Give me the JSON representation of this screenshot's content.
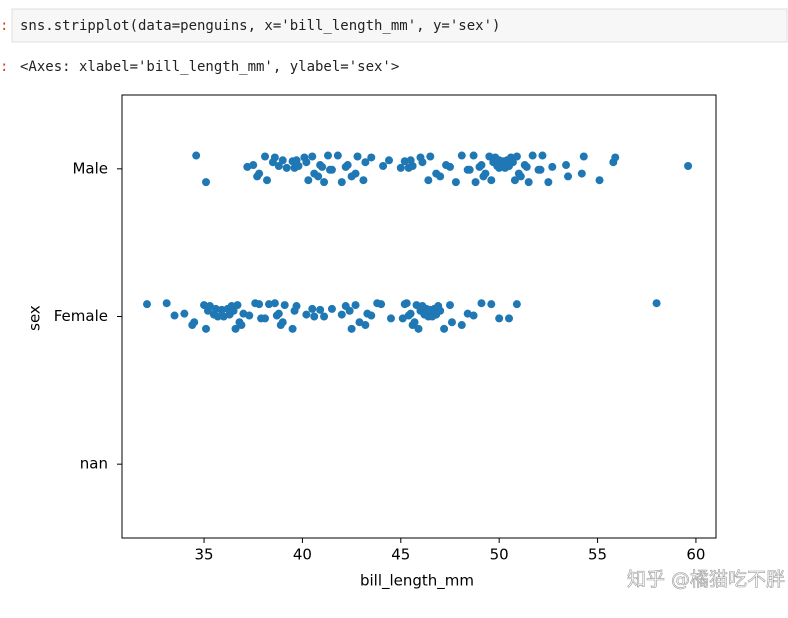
{
  "input_prompt": ":",
  "code": "sns.stripplot(data=penguins, x='bill_length_mm', y='sex')",
  "output_prompt": ":",
  "output": "<Axes: xlabel='bill_length_mm', ylabel='sex'>",
  "watermark": "知乎 @橘猫吃不胖",
  "chart_data": {
    "type": "strip",
    "xlabel": "bill_length_mm",
    "ylabel": "sex",
    "color": "#1f77b4",
    "categories": [
      "Male",
      "Female",
      "nan"
    ],
    "values": [
      [
        34.6,
        35.1,
        37.2,
        37.5,
        37.7,
        37.8,
        38.1,
        38.2,
        38.5,
        38.6,
        38.8,
        39.0,
        39.2,
        39.5,
        39.6,
        39.7,
        39.8,
        40.1,
        40.2,
        40.3,
        40.5,
        40.6,
        40.8,
        40.9,
        41.0,
        41.1,
        41.3,
        41.4,
        41.5,
        41.8,
        42.0,
        42.2,
        42.3,
        42.5,
        42.7,
        42.8,
        43.1,
        43.2,
        43.5,
        44.1,
        44.4,
        45.0,
        45.2,
        45.4,
        45.5,
        45.6,
        46.0,
        46.1,
        46.4,
        46.5,
        46.8,
        47.0,
        47.3,
        47.5,
        47.8,
        48.1,
        48.4,
        48.5,
        48.7,
        48.8,
        49.0,
        49.1,
        49.2,
        49.3,
        49.5,
        49.6,
        49.7,
        49.8,
        49.9,
        50.0,
        50.0,
        50.2,
        50.3,
        50.4,
        50.5,
        50.6,
        50.7,
        50.8,
        50.9,
        51.0,
        51.1,
        51.3,
        51.4,
        51.5,
        51.7,
        52.0,
        52.1,
        52.2,
        52.5,
        52.7,
        53.4,
        53.5,
        54.2,
        54.3,
        55.1,
        55.8,
        55.9,
        59.6
      ],
      [
        32.1,
        33.1,
        33.5,
        34.0,
        34.4,
        34.5,
        35.0,
        35.1,
        35.2,
        35.3,
        35.5,
        35.6,
        35.7,
        35.9,
        36.0,
        36.2,
        36.3,
        36.4,
        36.5,
        36.6,
        36.7,
        36.8,
        36.9,
        37.0,
        37.3,
        37.6,
        37.8,
        37.9,
        38.1,
        38.3,
        38.6,
        38.7,
        38.8,
        38.9,
        39.0,
        39.1,
        39.5,
        39.6,
        39.7,
        40.2,
        40.5,
        40.6,
        40.9,
        41.1,
        41.5,
        42.0,
        42.2,
        42.4,
        42.5,
        42.7,
        42.9,
        43.2,
        43.3,
        43.5,
        43.8,
        44.0,
        44.5,
        45.1,
        45.2,
        45.3,
        45.4,
        45.5,
        45.6,
        45.7,
        45.8,
        45.9,
        46.0,
        46.1,
        46.2,
        46.3,
        46.4,
        46.5,
        46.6,
        46.7,
        46.8,
        46.9,
        47.0,
        47.2,
        47.5,
        47.6,
        48.1,
        48.4,
        48.7,
        49.1,
        49.6,
        50.0,
        50.5,
        50.9,
        58.0
      ],
      []
    ],
    "xlim": [
      30.83,
      61.02
    ],
    "xticks": [
      35,
      40,
      45,
      50,
      55,
      60
    ]
  }
}
